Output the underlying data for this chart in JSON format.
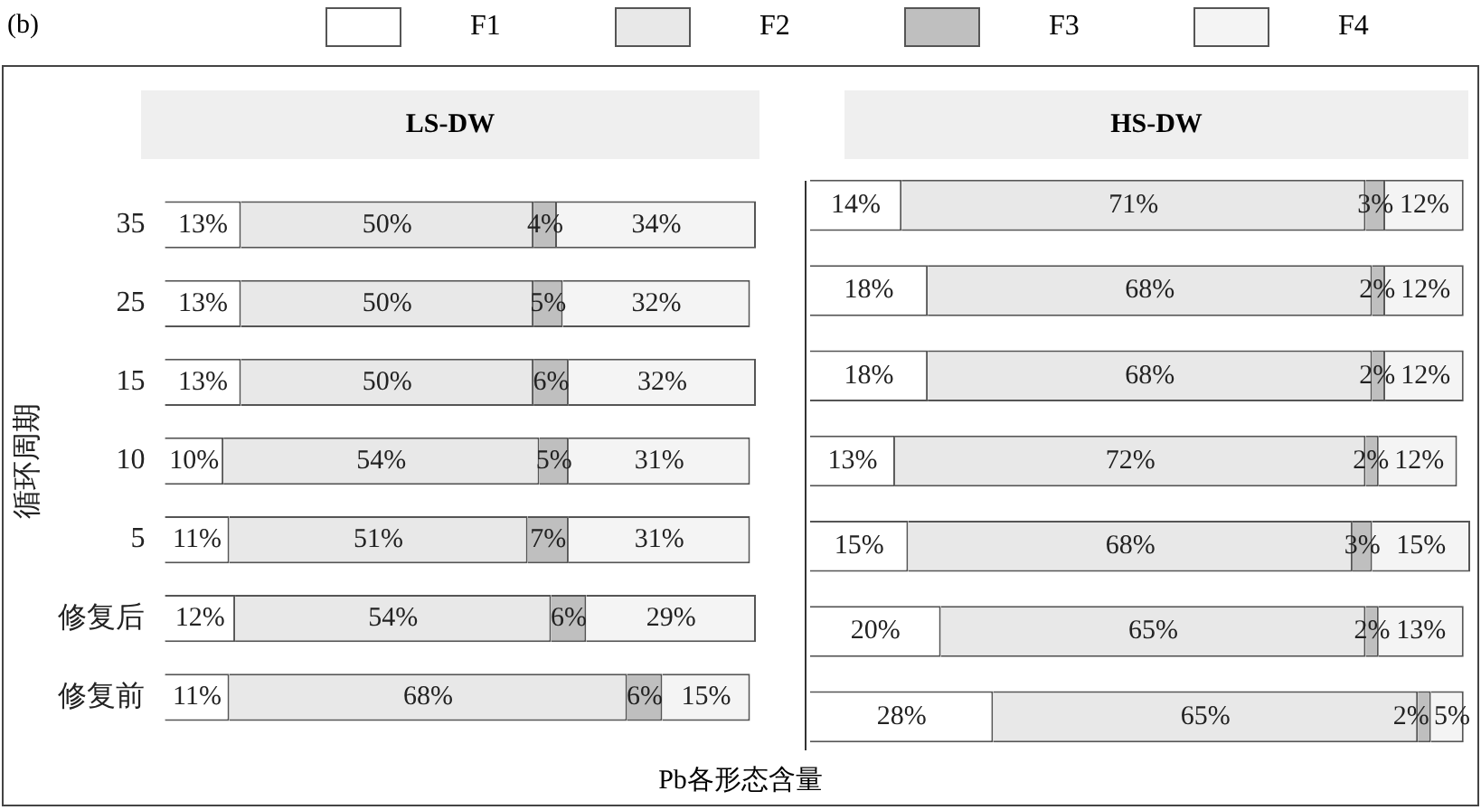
{
  "chart_data": [
    {
      "type": "bar",
      "orientation": "horizontal",
      "stacked": true,
      "title": "LS-DW",
      "ylabel": "循环周期",
      "xlabel": "Pb各形态含量",
      "annotations": [
        "(b)"
      ],
      "legend": "top",
      "tick_labels": "y",
      "categories": [
        "35",
        "25",
        "15",
        "10",
        "5",
        "修复后",
        "修复前"
      ],
      "series": [
        {
          "name": "F1",
          "color": "#ffffff",
          "values": [
            13,
            13,
            13,
            10,
            11,
            12,
            11
          ],
          "value_labels": [
            "13%",
            "13%",
            "13%",
            "10%",
            "11%",
            "12%",
            "11%"
          ]
        },
        {
          "name": "F2",
          "color": "#e8e8e8",
          "values": [
            50,
            50,
            50,
            54,
            51,
            54,
            68
          ],
          "value_labels": [
            "50%",
            "50%",
            "50%",
            "54%",
            "51%",
            "54%",
            "68%"
          ]
        },
        {
          "name": "F3",
          "color": "#bfbfbf",
          "values": [
            4,
            5,
            6,
            5,
            7,
            6,
            6
          ],
          "value_labels": [
            "4%",
            "5%",
            "6%",
            "5%",
            "7%",
            "6%",
            "6%"
          ]
        },
        {
          "name": "F4",
          "color": "#f4f4f4",
          "values": [
            34,
            32,
            32,
            31,
            31,
            29,
            15
          ],
          "value_labels": [
            "34%",
            "32%",
            "32%",
            "31%",
            "31%",
            "29%",
            "15%"
          ]
        }
      ]
    },
    {
      "type": "bar",
      "orientation": "horizontal",
      "stacked": true,
      "title": "HS-DW",
      "tick_labels": false,
      "categories": [
        null,
        null,
        null,
        null,
        null,
        null,
        null
      ],
      "series": [
        {
          "color": "#ffffff",
          "values": [
            14,
            18,
            18,
            13,
            15,
            20,
            28
          ],
          "value_labels": [
            "14%",
            "18%",
            "18%",
            "13%",
            "15%",
            "20%",
            "28%"
          ]
        },
        {
          "color": "#e8e8e8",
          "values": [
            71,
            68,
            68,
            72,
            68,
            65,
            65
          ],
          "value_labels": [
            "71%",
            "68%",
            "68%",
            "72%",
            "68%",
            "65%",
            "65%"
          ]
        },
        {
          "color": "#bfbfbf",
          "values": [
            3,
            2,
            2,
            2,
            3,
            2,
            2
          ],
          "value_labels": [
            "3%",
            "2%",
            "2%",
            "2%",
            "3%",
            "2%",
            "2%"
          ]
        },
        {
          "color": "#f4f4f4",
          "values": [
            12,
            12,
            12,
            12,
            15,
            13,
            5
          ],
          "value_labels": [
            "12%",
            "12%",
            "12%",
            "12%",
            "15%",
            "13%",
            "5%"
          ]
        }
      ]
    }
  ]
}
